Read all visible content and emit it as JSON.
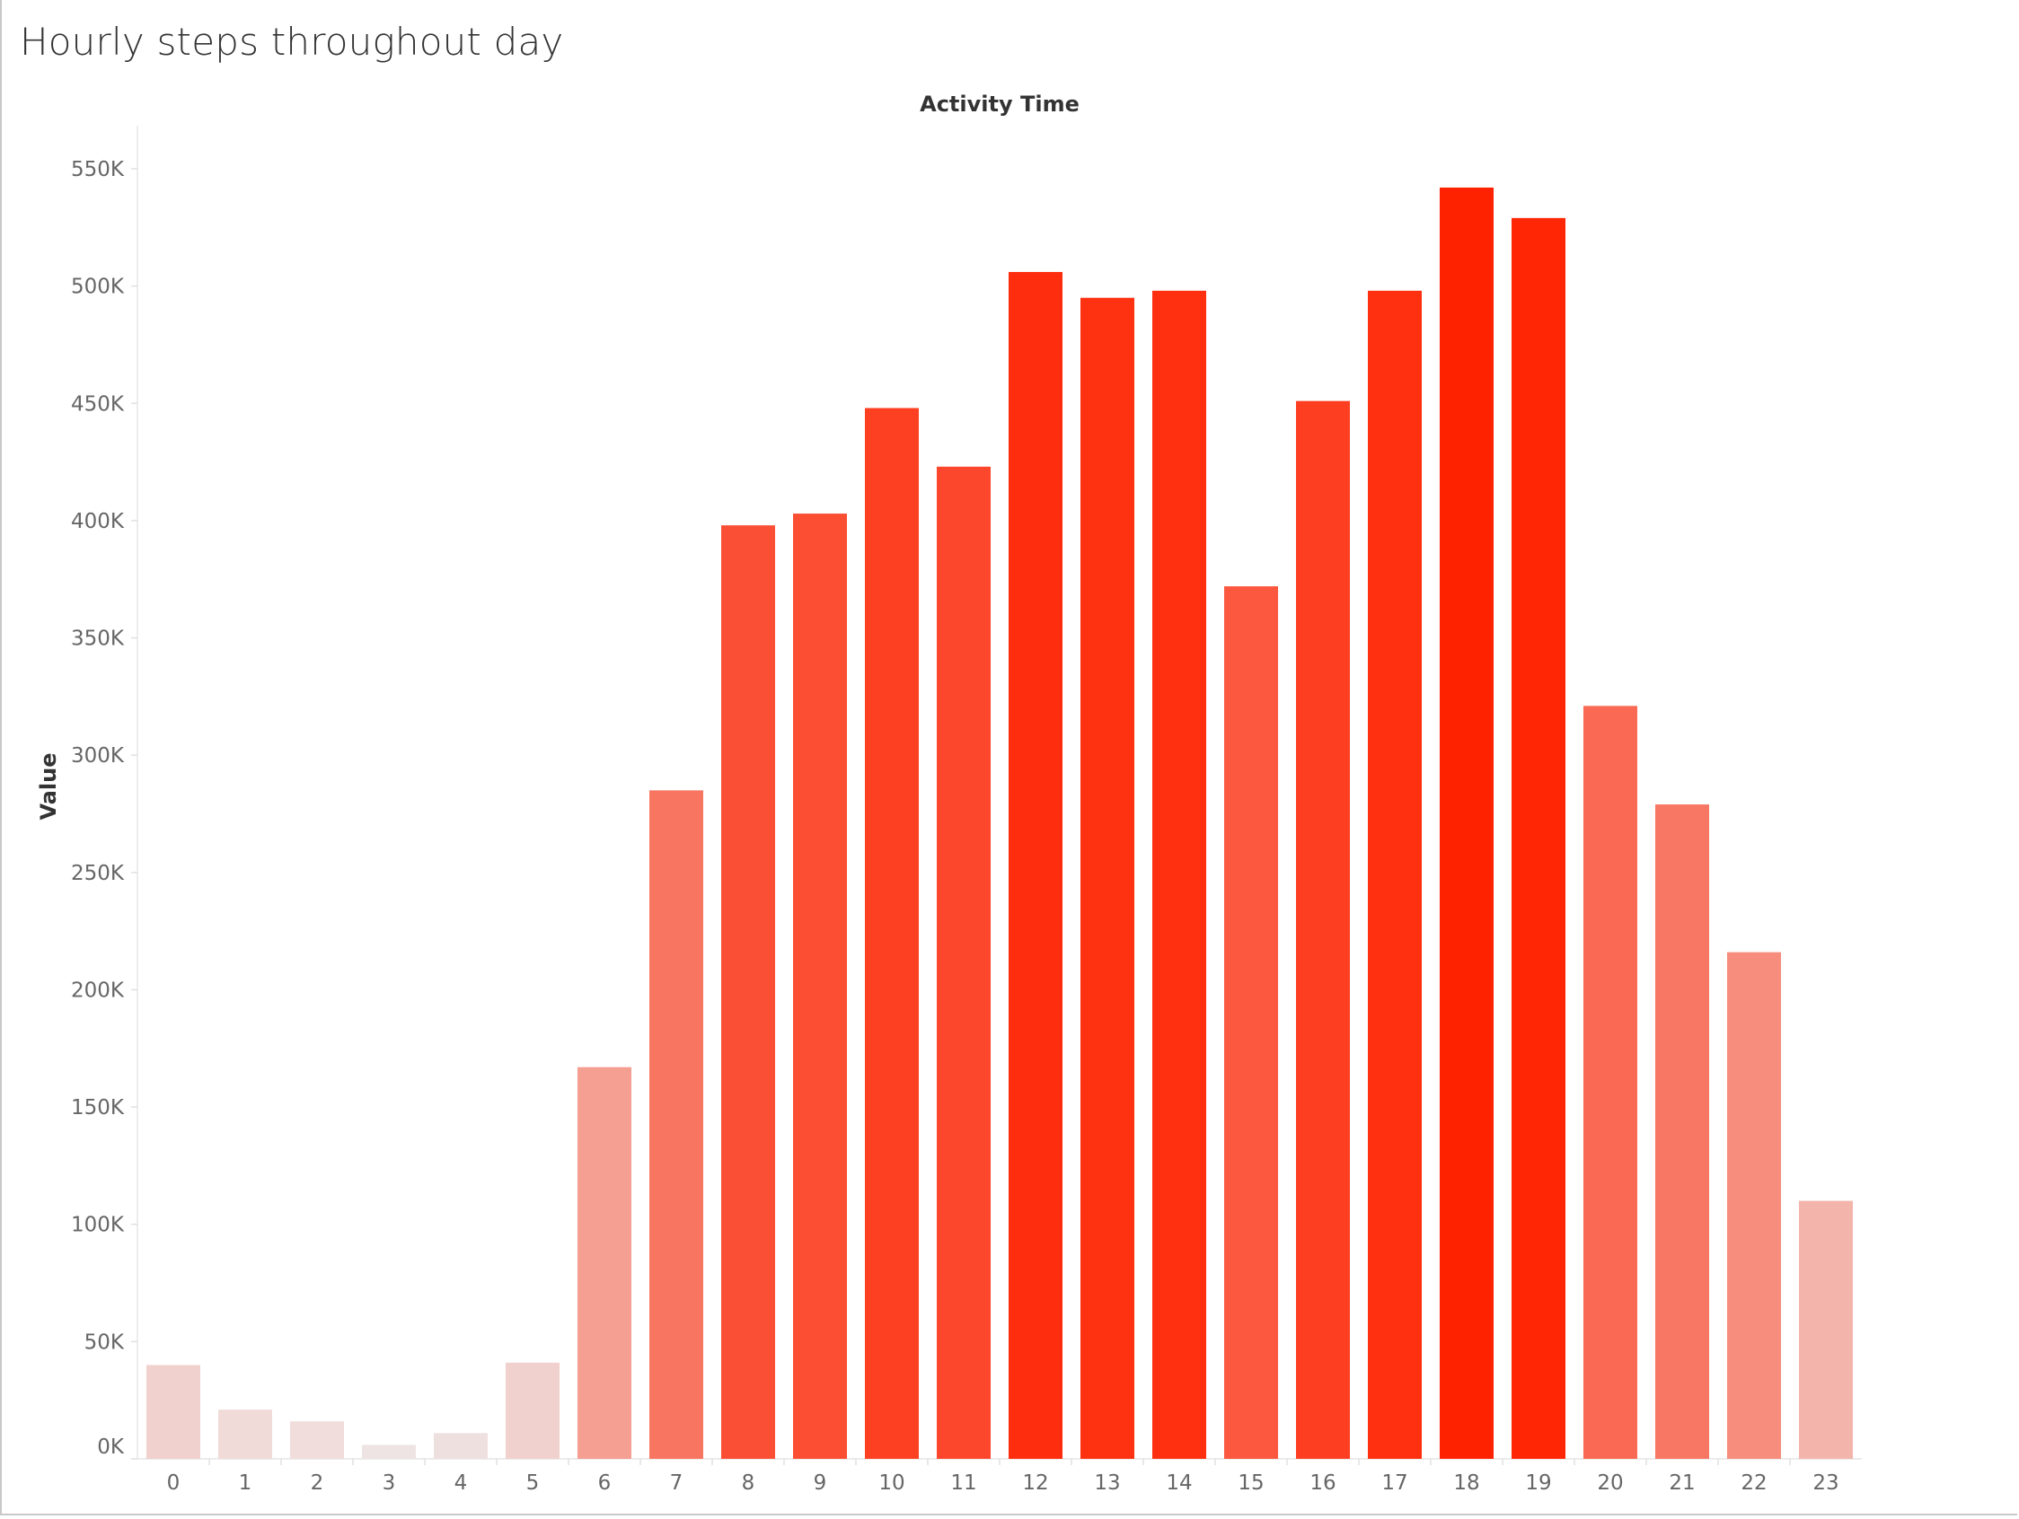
{
  "page": {
    "title": "Hourly steps throughout day"
  },
  "chart_data": {
    "type": "bar",
    "title": "Hourly steps throughout day",
    "xlabel": "Activity Time",
    "ylabel": "Value",
    "categories": [
      "0",
      "1",
      "2",
      "3",
      "4",
      "5",
      "6",
      "7",
      "8",
      "9",
      "10",
      "11",
      "12",
      "13",
      "14",
      "15",
      "16",
      "17",
      "18",
      "19",
      "20",
      "21",
      "22",
      "23"
    ],
    "values": [
      40000,
      21000,
      16000,
      6000,
      11000,
      41000,
      167000,
      285000,
      398000,
      403000,
      448000,
      423000,
      506000,
      495000,
      498000,
      372000,
      451000,
      498000,
      542000,
      529000,
      321000,
      279000,
      216000,
      110000
    ],
    "ylim": [
      0,
      570000
    ],
    "yticks": [
      0,
      50000,
      100000,
      150000,
      200000,
      250000,
      300000,
      350000,
      400000,
      450000,
      500000,
      550000
    ],
    "ytick_labels": [
      "0K",
      "50K",
      "100K",
      "150K",
      "200K",
      "250K",
      "300K",
      "350K",
      "400K",
      "450K",
      "500K",
      "550K"
    ],
    "grid": false,
    "legend": "none",
    "color_scale": {
      "low": "#efe4e4",
      "high": "#ff2200"
    }
  }
}
